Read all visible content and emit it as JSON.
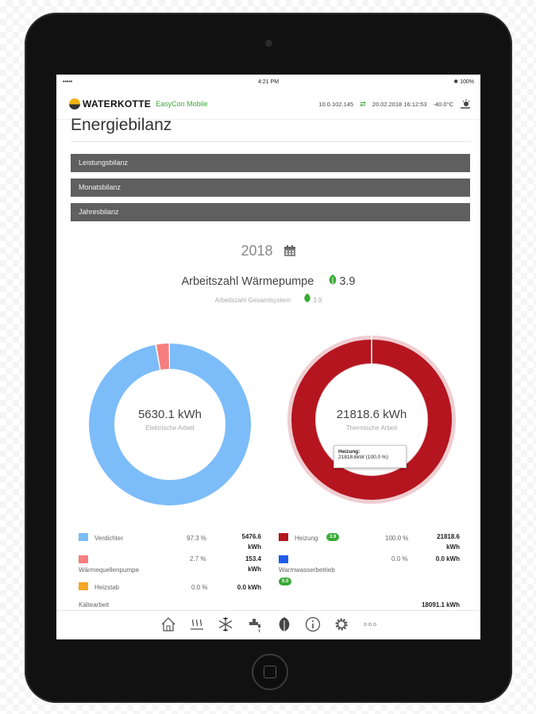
{
  "status_bar": {
    "signal": "•••••",
    "wifi": "ᯤ",
    "time": "4:21 PM",
    "battery": "✱ 100%"
  },
  "header": {
    "brand": "WATERKOTTE",
    "product": "EasyCon Mobile",
    "ip": "10.0.102.145",
    "datetime": "20.02.2018 16:12:53",
    "temperature": "-40.0°C"
  },
  "page_title": "Energiebilanz",
  "accordion": [
    {
      "label": "Leistungsbilanz"
    },
    {
      "label": "Monatsbilanz"
    },
    {
      "label": "Jahresbilanz"
    }
  ],
  "year": "2018",
  "arbeitszahl": {
    "label": "Arbeitszahl Wärmepumpe",
    "value": "3.9",
    "system_label": "Arbeitszahl Gesamtsystem",
    "system_value": "3.9"
  },
  "electric": {
    "value": "5630.1 kWh",
    "label": "Elektrische Arbeit",
    "legend": [
      {
        "name": "Verdichter",
        "percent": "97.3 %",
        "kwh": "5476.6",
        "unit": "kWh",
        "color": "#7cbcf9",
        "fraction": 0.973
      },
      {
        "name": "Wärmequellenpumpe",
        "percent": "2.7 %",
        "kwh": "153.4",
        "unit": "kWh",
        "color": "#f77e7e",
        "fraction": 0.027
      },
      {
        "name": "Heizstab",
        "percent": "0.0 %",
        "kwh": "0.0 kWh",
        "color": "#f5a623",
        "fraction": 0.0
      }
    ]
  },
  "thermal": {
    "value": "21818.6 kWh",
    "label": "Thermische Arbeit",
    "tooltip_title": "Heizung:",
    "tooltip_value": "21818.6kW (100.0 %)",
    "legend": [
      {
        "name": "Heizung",
        "badge": "3.9",
        "percent": "100.0 %",
        "kwh": "21818.6",
        "unit": "kWh",
        "color": "#b5151f",
        "fraction": 1.0
      },
      {
        "name": "Warmwasserbetrieb",
        "badge": "0.0",
        "percent": "0.0 %",
        "kwh": "0.0 kWh",
        "color": "#1f5ce8",
        "fraction": 0.0
      }
    ]
  },
  "kaeltearbeit": {
    "label": "Kältearbeit",
    "value": "18091.1 kWh"
  },
  "tabs": [
    "home-icon",
    "heating-icon",
    "cooling-icon",
    "water-tap-icon",
    "leaf-icon",
    "info-icon",
    "gear-icon",
    "more-icon"
  ]
}
